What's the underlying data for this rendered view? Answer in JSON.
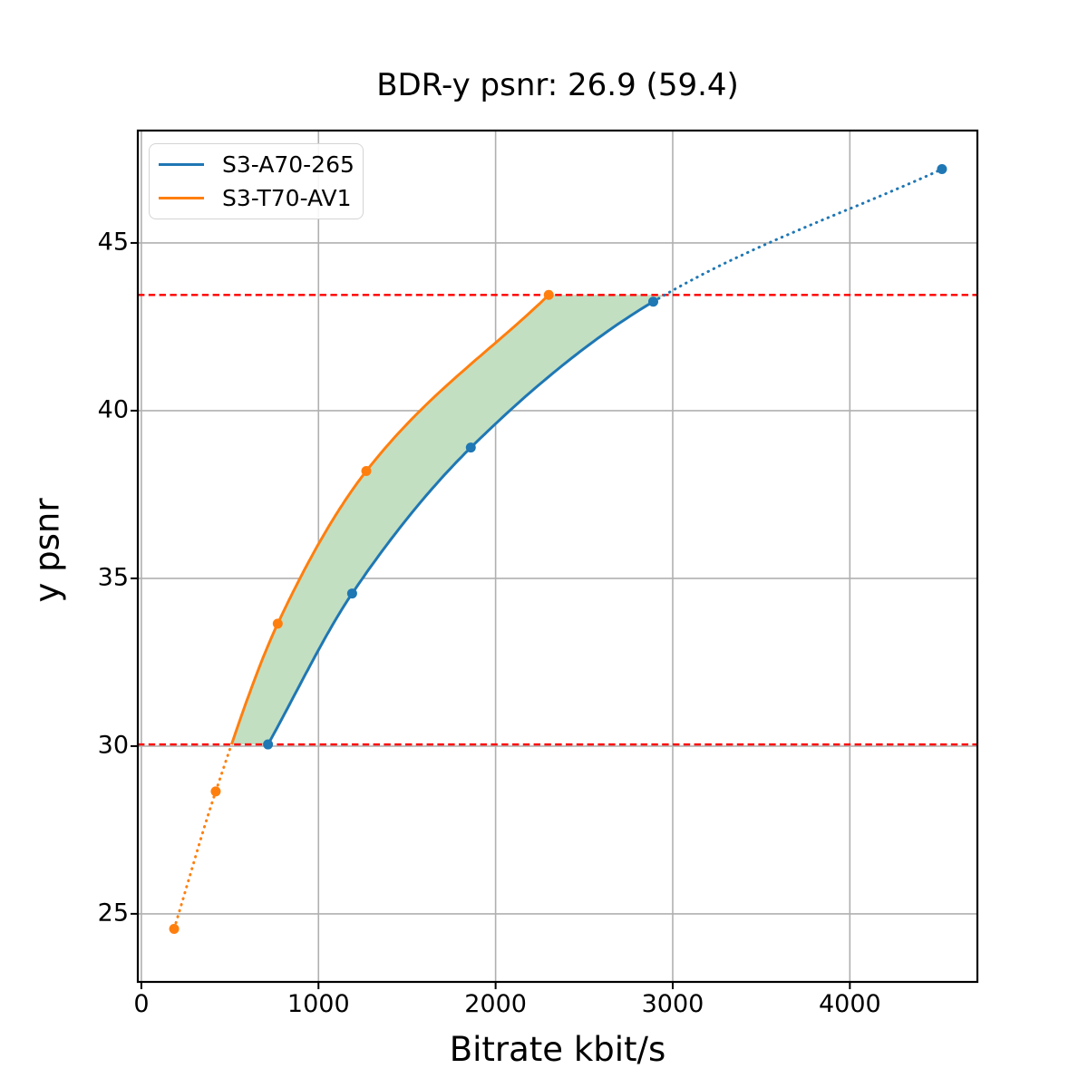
{
  "title": "BDR-y psnr: 26.9 (59.4)",
  "chart_data": {
    "type": "line",
    "title": "BDR-y psnr: 26.9 (59.4)",
    "xlabel": "Bitrate kbit/s",
    "ylabel": "y psnr",
    "xlim": [
      -20,
      4720
    ],
    "ylim": [
      22.97,
      48.35
    ],
    "xticks": [
      0,
      1000,
      2000,
      3000,
      4000
    ],
    "yticks": [
      25,
      30,
      35,
      40,
      45
    ],
    "grid": true,
    "grid_color": "#b0b0b0",
    "legend_position": "upper left",
    "series": [
      {
        "name": "S3-A70-265",
        "color": "#1f77b4",
        "points": [
          [
            715,
            30.05
          ],
          [
            1190,
            34.55
          ],
          [
            1860,
            38.9
          ],
          [
            2890,
            43.25
          ],
          [
            4520,
            47.2
          ]
        ],
        "dotted_tail_from_index": 3,
        "dotted_head_until_y": null
      },
      {
        "name": "S3-T70-AV1",
        "color": "#ff7f0e",
        "points": [
          [
            185,
            24.55
          ],
          [
            420,
            28.65
          ],
          [
            770,
            33.65
          ],
          [
            1270,
            38.2
          ],
          [
            2300,
            43.45
          ]
        ],
        "dotted_tail_from_index": null,
        "dotted_head_until_y": 30.05
      }
    ],
    "threshold_lines": {
      "style": "dashed",
      "color": "#ff0000",
      "values": [
        30.05,
        43.45
      ]
    },
    "shaded_region": {
      "color": "#c2dfc2",
      "between_y": [
        30.05,
        43.45
      ],
      "between_series": [
        "S3-T70-AV1",
        "S3-A70-265"
      ]
    }
  }
}
